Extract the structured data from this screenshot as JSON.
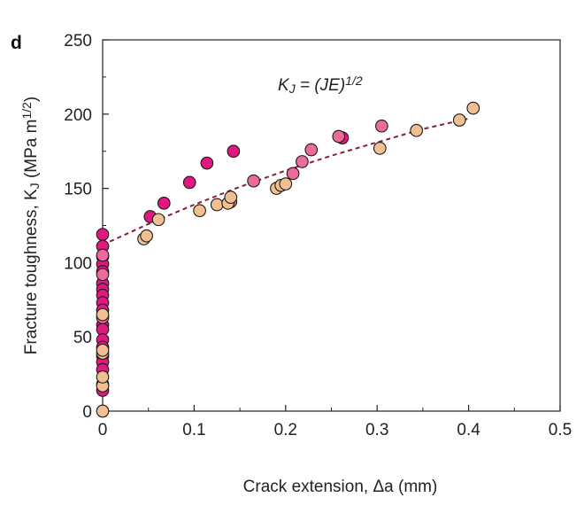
{
  "panel_label": "d",
  "chart_data": {
    "type": "scatter",
    "xlabel": "Crack extension, Δa (mm)",
    "ylabel": "Fracture toughness, K_J (MPa m^1/2)",
    "xlim": [
      0,
      0.5
    ],
    "ylim": [
      0,
      250
    ],
    "xticks": [
      "0",
      "0.1",
      "0.2",
      "0.3",
      "0.4",
      "0.5"
    ],
    "yticks": [
      "0",
      "50",
      "100",
      "150",
      "200",
      "250"
    ],
    "annotation": "K_J = (JE)^1/2",
    "grid": false,
    "colors": {
      "magenta": "#e0187f",
      "pink": "#ec6a9c",
      "peach": "#f2bf92",
      "fit": "#8b1d3a"
    },
    "fit_line": {
      "x": [
        0,
        0.05,
        0.1,
        0.15,
        0.2,
        0.25,
        0.3,
        0.35,
        0.4
      ],
      "y": [
        112,
        126,
        139,
        151,
        162,
        172,
        181,
        190,
        197
      ]
    },
    "series": [
      {
        "color": "magenta",
        "points": [
          [
            0,
            119
          ],
          [
            0,
            111
          ],
          [
            0,
            104
          ],
          [
            0,
            99
          ],
          [
            0,
            94
          ],
          [
            0,
            86
          ],
          [
            0,
            82
          ],
          [
            0,
            78
          ],
          [
            0,
            73
          ],
          [
            0,
            68
          ],
          [
            0,
            58
          ],
          [
            0,
            55
          ],
          [
            0,
            48
          ],
          [
            0,
            43
          ],
          [
            0,
            37
          ],
          [
            0,
            33
          ],
          [
            0,
            28
          ],
          [
            0,
            18
          ],
          [
            0,
            14
          ],
          [
            0.052,
            131
          ],
          [
            0.067,
            140
          ],
          [
            0.095,
            154
          ],
          [
            0.114,
            167
          ],
          [
            0.143,
            175
          ],
          [
            0.262,
            184
          ]
        ]
      },
      {
        "color": "pink",
        "points": [
          [
            0,
            105
          ],
          [
            0,
            92
          ],
          [
            0,
            63
          ],
          [
            0.14,
            141
          ],
          [
            0.165,
            155
          ],
          [
            0.208,
            160
          ],
          [
            0.218,
            168
          ],
          [
            0.228,
            176
          ],
          [
            0.258,
            185
          ],
          [
            0.305,
            192
          ]
        ]
      },
      {
        "color": "peach",
        "points": [
          [
            0,
            0
          ],
          [
            0,
            17
          ],
          [
            0,
            23
          ],
          [
            0,
            39
          ],
          [
            0,
            41
          ],
          [
            0,
            65
          ],
          [
            0.045,
            116
          ],
          [
            0.048,
            118
          ],
          [
            0.061,
            129
          ],
          [
            0.106,
            135
          ],
          [
            0.125,
            139
          ],
          [
            0.137,
            140
          ],
          [
            0.14,
            144
          ],
          [
            0.19,
            150
          ],
          [
            0.195,
            152
          ],
          [
            0.2,
            153
          ],
          [
            0.303,
            177
          ],
          [
            0.343,
            189
          ],
          [
            0.39,
            196
          ],
          [
            0.405,
            204
          ]
        ]
      }
    ]
  }
}
